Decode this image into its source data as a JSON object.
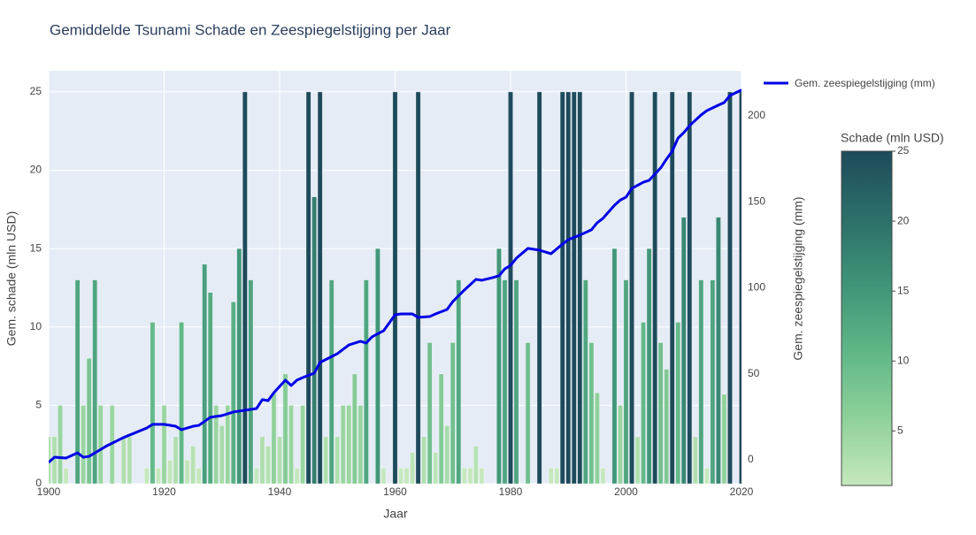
{
  "chart_data": {
    "type": "bar-line",
    "title": "Gemiddelde Tsunami Schade en Zeespiegelstijging per Jaar",
    "x_label": "Jaar",
    "y_label": "Gem. schade (mln USD)",
    "y2_label": "Gem. zeespiegelstijging (mm)",
    "xlim": [
      1900,
      2020
    ],
    "xticks": [
      1900,
      1920,
      1940,
      1960,
      1980,
      2000,
      2020
    ],
    "ylim": [
      0,
      26.35
    ],
    "yticks": [
      0,
      5,
      10,
      15,
      20,
      25
    ],
    "y2lim": [
      -13.9,
      226.2
    ],
    "y2ticks": [
      0,
      50,
      100,
      150,
      200
    ],
    "grid": true,
    "legend": "top-right",
    "colorbar": {
      "title": "Schade (mln USD)",
      "range": [
        1.1,
        25
      ],
      "ticks": [
        5,
        10,
        15,
        20,
        25
      ],
      "colorscale": [
        "#c5e8bd",
        "#8fd19a",
        "#5fb787",
        "#3f9478",
        "#2c6f69",
        "#1e4b5c"
      ]
    },
    "series": [
      {
        "type": "bar",
        "x": [
          1900,
          1901,
          1902,
          1903,
          1904,
          1905,
          1906,
          1907,
          1908,
          1909,
          1910,
          1911,
          1912,
          1913,
          1914,
          1915,
          1916,
          1917,
          1918,
          1919,
          1920,
          1921,
          1922,
          1923,
          1924,
          1925,
          1926,
          1927,
          1928,
          1929,
          1930,
          1931,
          1932,
          1933,
          1934,
          1935,
          1936,
          1937,
          1938,
          1939,
          1940,
          1941,
          1942,
          1943,
          1944,
          1945,
          1946,
          1947,
          1948,
          1949,
          1950,
          1951,
          1952,
          1953,
          1954,
          1955,
          1956,
          1957,
          1958,
          1959,
          1960,
          1961,
          1962,
          1963,
          1964,
          1965,
          1966,
          1967,
          1968,
          1969,
          1970,
          1971,
          1972,
          1973,
          1974,
          1975,
          1976,
          1977,
          1978,
          1979,
          1980,
          1981,
          1982,
          1983,
          1984,
          1985,
          1986,
          1987,
          1988,
          1989,
          1990,
          1991,
          1992,
          1993,
          1994,
          1995,
          1996,
          1997,
          1998,
          1999,
          2000,
          2001,
          2002,
          2003,
          2004,
          2005,
          2006,
          2007,
          2008,
          2009,
          2010,
          2011,
          2012,
          2013,
          2014,
          2015,
          2016,
          2017,
          2018,
          2019,
          2020
        ],
        "values": [
          3,
          3,
          5,
          1,
          null,
          13,
          5,
          8,
          13,
          5,
          null,
          5,
          null,
          3,
          3,
          null,
          null,
          1,
          10.3,
          1,
          5,
          1.5,
          3,
          10.3,
          1.5,
          2.4,
          1,
          14,
          12.2,
          5,
          3.7,
          5,
          11.6,
          15,
          25,
          13,
          1,
          3,
          2.4,
          5.8,
          3,
          7,
          5,
          1,
          5,
          25,
          18.3,
          25,
          3,
          13,
          3,
          5,
          5,
          7,
          5,
          13,
          null,
          15,
          1,
          null,
          25,
          1,
          1,
          2,
          25,
          3,
          9,
          2,
          7,
          3.7,
          9,
          13,
          1,
          1,
          2.4,
          1,
          null,
          null,
          15,
          13,
          25,
          13,
          null,
          9,
          null,
          25,
          null,
          1,
          1,
          25,
          25,
          25,
          25,
          13,
          9,
          5.8,
          1,
          null,
          15,
          5,
          13,
          25,
          3,
          10.3,
          15,
          25,
          9,
          7.3,
          25,
          10.3,
          17,
          25,
          3,
          13,
          1,
          13,
          17,
          5.7,
          25,
          null,
          25
        ]
      },
      {
        "type": "line",
        "name": "Gem. zeespiegelstijging (mm)",
        "color": "#0000e6",
        "axis": "y2",
        "x": [
          1900,
          1901,
          1903,
          1905,
          1906,
          1907,
          1910,
          1913,
          1917,
          1918,
          1920,
          1922,
          1923,
          1925,
          1926,
          1928,
          1930,
          1932,
          1934,
          1936,
          1937,
          1938,
          1939,
          1941,
          1942,
          1943,
          1944,
          1946,
          1947,
          1950,
          1952,
          1954,
          1955,
          1956,
          1958,
          1960,
          1961,
          1963,
          1964,
          1966,
          1967,
          1969,
          1970,
          1972,
          1974,
          1975,
          1977,
          1978,
          1979,
          1980,
          1981,
          1983,
          1985,
          1987,
          1989,
          1990,
          1992,
          1994,
          1995,
          1996,
          1998,
          1999,
          2000,
          2001,
          2003,
          2004,
          2006,
          2007,
          2008,
          2009,
          2010,
          2011,
          2013,
          2014,
          2016,
          2017,
          2018,
          2020
        ],
        "values": [
          -1.5,
          1.5,
          1,
          4,
          1.5,
          2,
          8,
          13,
          18.5,
          20.6,
          20.6,
          19.5,
          17.5,
          19.5,
          20,
          24.7,
          25.7,
          27.8,
          28.8,
          29.8,
          35,
          34.4,
          39,
          46.3,
          43.2,
          46.3,
          47.8,
          50.4,
          56.6,
          61.7,
          66.8,
          68.9,
          67.9,
          71.5,
          75,
          84.3,
          84.8,
          84.8,
          82.8,
          83.3,
          84.8,
          87.4,
          92,
          98.7,
          104.9,
          104.4,
          106,
          107,
          111,
          113,
          117.2,
          122.9,
          121.9,
          119.8,
          125.4,
          128,
          130.6,
          133.7,
          137.8,
          140.4,
          148,
          151,
          152.7,
          157.8,
          161.4,
          162.5,
          169.7,
          174.8,
          179.4,
          187,
          190.2,
          194.3,
          200.5,
          203,
          206.2,
          207.7,
          211.8,
          215
        ]
      }
    ]
  }
}
